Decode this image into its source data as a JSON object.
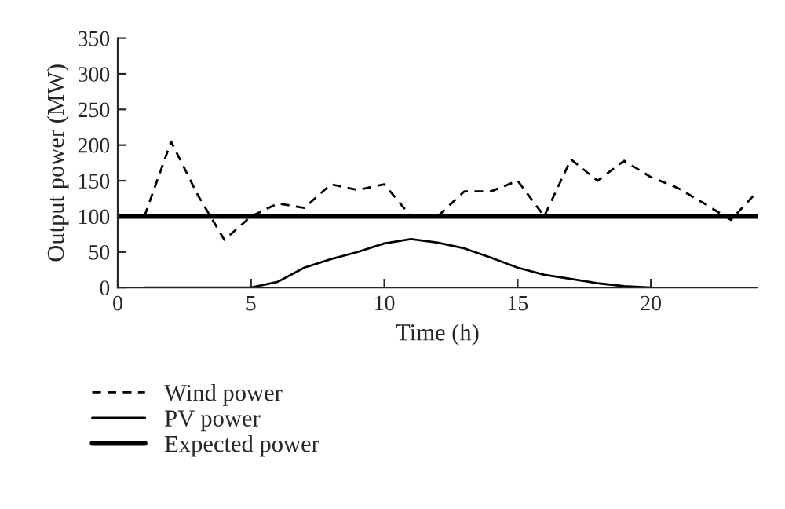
{
  "chart_data": {
    "type": "line",
    "xlabel": "Time (h)",
    "ylabel": "Output power (MW)",
    "xlim": [
      0,
      24
    ],
    "xticks": [
      0,
      5,
      10,
      15,
      20
    ],
    "ylim": [
      0,
      350
    ],
    "yticks": [
      0,
      50,
      100,
      150,
      200,
      250,
      300,
      350
    ],
    "grid": false,
    "legend": "bottom left",
    "series": [
      {
        "name": "Wind power",
        "color": "#000000",
        "line_style": "dashed",
        "x": [
          1,
          2,
          3,
          4,
          5,
          6,
          7,
          8,
          9,
          10,
          11,
          12,
          13,
          14,
          15,
          16,
          17,
          18,
          19,
          20,
          21,
          22,
          23,
          24
        ],
        "values": [
          100,
          205,
          130,
          67,
          100,
          118,
          112,
          145,
          137,
          145,
          100,
          100,
          135,
          135,
          150,
          100,
          180,
          150,
          178,
          155,
          140,
          118,
          95,
          135
        ]
      },
      {
        "name": "PV power",
        "color": "#000000",
        "line_style": "solid",
        "x": [
          1,
          2,
          3,
          4,
          5,
          6,
          7,
          8,
          9,
          10,
          11,
          12,
          13,
          14,
          15,
          16,
          17,
          18,
          19,
          20
        ],
        "values": [
          0,
          0,
          0,
          0,
          0,
          8,
          28,
          40,
          50,
          62,
          68,
          63,
          55,
          42,
          28,
          18,
          12,
          6,
          2,
          0
        ]
      },
      {
        "name": "Expected power",
        "color": "#000000",
        "line_style": "solid",
        "x": [
          0,
          24
        ],
        "values": [
          100,
          100
        ]
      }
    ]
  }
}
